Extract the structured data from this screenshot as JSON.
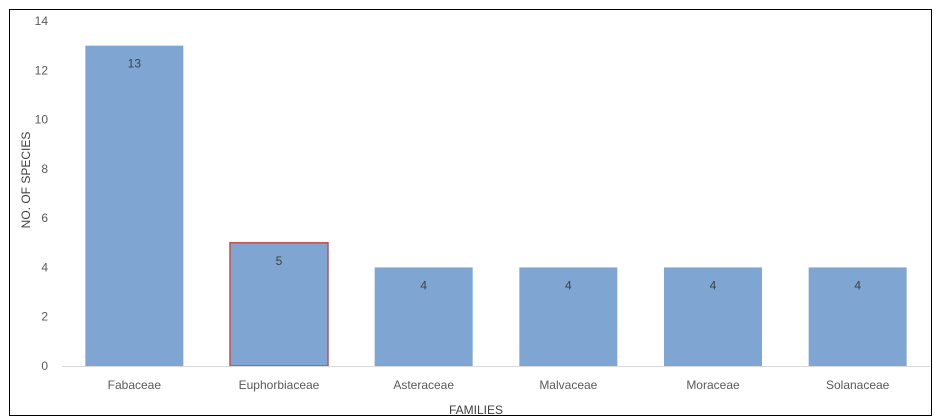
{
  "chart_data": {
    "type": "bar",
    "categories": [
      "Fabaceae",
      "Euphorbiaceae",
      "Asteraceae",
      "Malvaceae",
      "Moraceae",
      "Solanaceae"
    ],
    "values": [
      13,
      5,
      4,
      4,
      4,
      4
    ],
    "data_labels": [
      "13",
      "5",
      "4",
      "4",
      "4",
      "4"
    ],
    "title": "",
    "xlabel": "FAMILIES",
    "ylabel": "NO. OF SPECIES",
    "ylim": [
      0,
      14
    ],
    "yticks": [
      0,
      2,
      4,
      6,
      8,
      10,
      12,
      14
    ],
    "ytick_labels": [
      "0",
      "2",
      "4",
      "6",
      "8",
      "10",
      "12",
      "14"
    ],
    "grid": false,
    "legend": "none",
    "bar_color": "#7fa6d2",
    "highlight_index": 1,
    "highlight_border_color": "#c0504d"
  }
}
